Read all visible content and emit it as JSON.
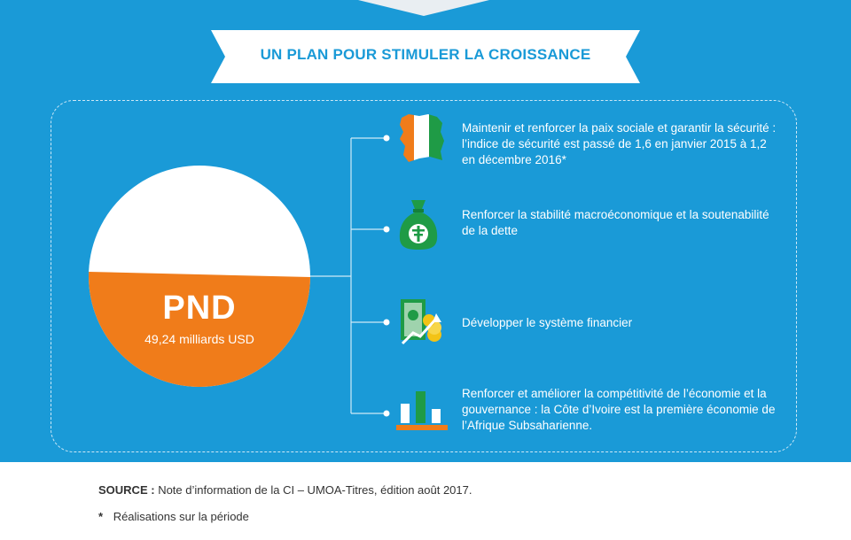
{
  "banner": {
    "title": "UN PLAN POUR STIMULER LA CROISSANCE"
  },
  "pnd": {
    "label": "PND",
    "value": "49,24 milliards USD"
  },
  "items": [
    {
      "icon": "cote-divoire-map-icon",
      "text": "Maintenir et renforcer la paix sociale et garantir la sécurité : l’indice de sécurité est passé de 1,6 en janvier 2015 à 1,2 en décembre 2016*"
    },
    {
      "icon": "money-bag-icon",
      "text": "Renforcer la stabilité macroéconomique et la soutenabilité de la dette"
    },
    {
      "icon": "financial-growth-icon",
      "text": "Développer le système financier"
    },
    {
      "icon": "bar-chart-icon",
      "text": "Renforcer et améliorer la compétitivité de l’économie et la gouvernance : la Côte d’Ivoire est la première économie de l’Afrique Subsaharienne."
    }
  ],
  "footer": {
    "source_label": "SOURCE :",
    "source_text": "Note d’information de la CI – UMOA-Titres, édition août 2017.",
    "note_star": "*",
    "note_text": "Réalisations sur la période"
  },
  "colors": {
    "background": "#1a9ad7",
    "orange": "#f07c1a",
    "green": "#1f9b46",
    "white": "#ffffff"
  }
}
